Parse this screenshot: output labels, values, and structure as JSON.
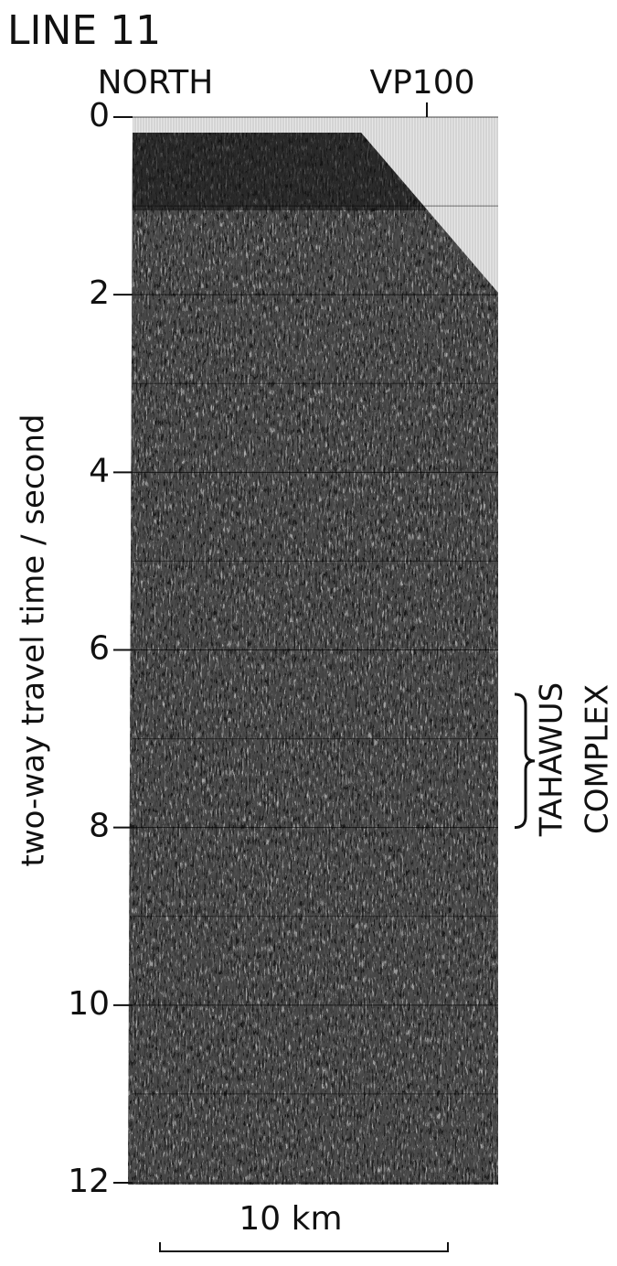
{
  "chart_data": {
    "type": "seismic",
    "title": "LINE 11",
    "top_labels": [
      "NORTH",
      "VP100"
    ],
    "ylabel": "two-way travel time / second",
    "ylim": [
      0,
      12
    ],
    "yticks": [
      0,
      2,
      4,
      6,
      8,
      10,
      12
    ],
    "minor_yticks": [
      1,
      3,
      5,
      7,
      9,
      11
    ],
    "grid": true,
    "annotation": {
      "lines": [
        "TAHAWUS",
        "COMPLEX"
      ],
      "range": [
        6.5,
        8
      ]
    },
    "scale_label": "10 km"
  }
}
